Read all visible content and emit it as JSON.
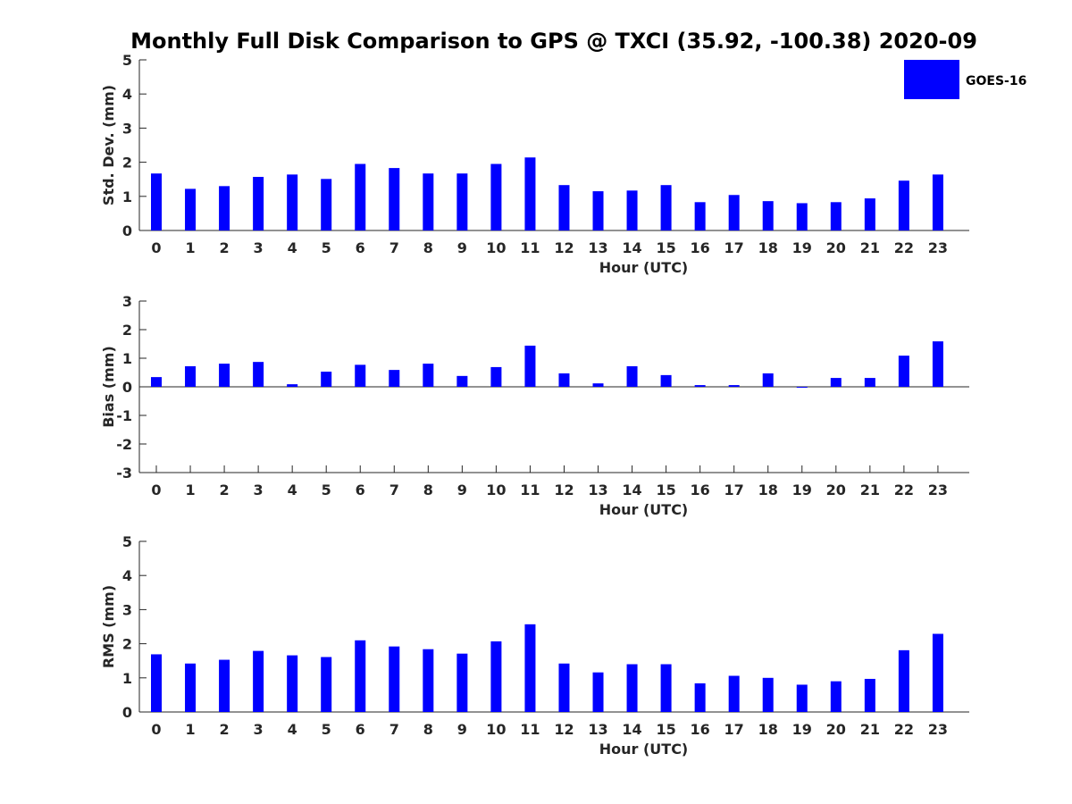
{
  "title": "Monthly Full Disk Comparison to GPS @ TXCI (35.92, -100.38) 2020-09",
  "legend": {
    "label": "GOES-16",
    "color": "#0000ff",
    "position": "top-right"
  },
  "chart_data": [
    {
      "type": "bar",
      "ylabel": "Std. Dev. (mm)",
      "xlabel": "Hour (UTC)",
      "ylim": [
        0,
        5
      ],
      "yticks": [
        0,
        1,
        2,
        3,
        4,
        5
      ],
      "categories": [
        0,
        1,
        2,
        3,
        4,
        5,
        6,
        7,
        8,
        9,
        10,
        11,
        12,
        13,
        14,
        15,
        16,
        17,
        18,
        19,
        20,
        21,
        22,
        23
      ],
      "series": [
        {
          "values": [
            1.67,
            1.22,
            1.3,
            1.57,
            1.64,
            1.51,
            1.95,
            1.83,
            1.67,
            1.67,
            1.95,
            2.14,
            1.33,
            1.15,
            1.17,
            1.33,
            0.83,
            1.04,
            0.86,
            0.8,
            0.83,
            0.94,
            1.46,
            1.64
          ],
          "color": "#0000ff"
        }
      ]
    },
    {
      "type": "bar",
      "ylabel": "Bias (mm)",
      "xlabel": "Hour (UTC)",
      "ylim": [
        -3,
        3
      ],
      "yticks": [
        -3,
        -2,
        -1,
        0,
        1,
        2,
        3
      ],
      "categories": [
        0,
        1,
        2,
        3,
        4,
        5,
        6,
        7,
        8,
        9,
        10,
        11,
        12,
        13,
        14,
        15,
        16,
        17,
        18,
        19,
        20,
        21,
        22,
        23
      ],
      "series": [
        {
          "values": [
            0.34,
            0.72,
            0.81,
            0.87,
            0.09,
            0.53,
            0.77,
            0.59,
            0.81,
            0.38,
            0.69,
            1.44,
            0.47,
            0.12,
            0.72,
            0.41,
            0.06,
            0.06,
            0.47,
            -0.03,
            0.31,
            0.31,
            1.09,
            1.59
          ],
          "color": "#0000ff"
        }
      ]
    },
    {
      "type": "bar",
      "ylabel": "RMS (mm)",
      "xlabel": "Hour (UTC)",
      "ylim": [
        0,
        5
      ],
      "yticks": [
        0,
        1,
        2,
        3,
        4,
        5
      ],
      "categories": [
        0,
        1,
        2,
        3,
        4,
        5,
        6,
        7,
        8,
        9,
        10,
        11,
        12,
        13,
        14,
        15,
        16,
        17,
        18,
        19,
        20,
        21,
        22,
        23
      ],
      "series": [
        {
          "values": [
            1.69,
            1.42,
            1.53,
            1.79,
            1.66,
            1.61,
            2.1,
            1.92,
            1.84,
            1.71,
            2.07,
            2.57,
            1.42,
            1.16,
            1.4,
            1.4,
            0.84,
            1.06,
            1.0,
            0.8,
            0.9,
            0.97,
            1.81,
            2.29
          ],
          "color": "#0000ff"
        }
      ]
    }
  ]
}
